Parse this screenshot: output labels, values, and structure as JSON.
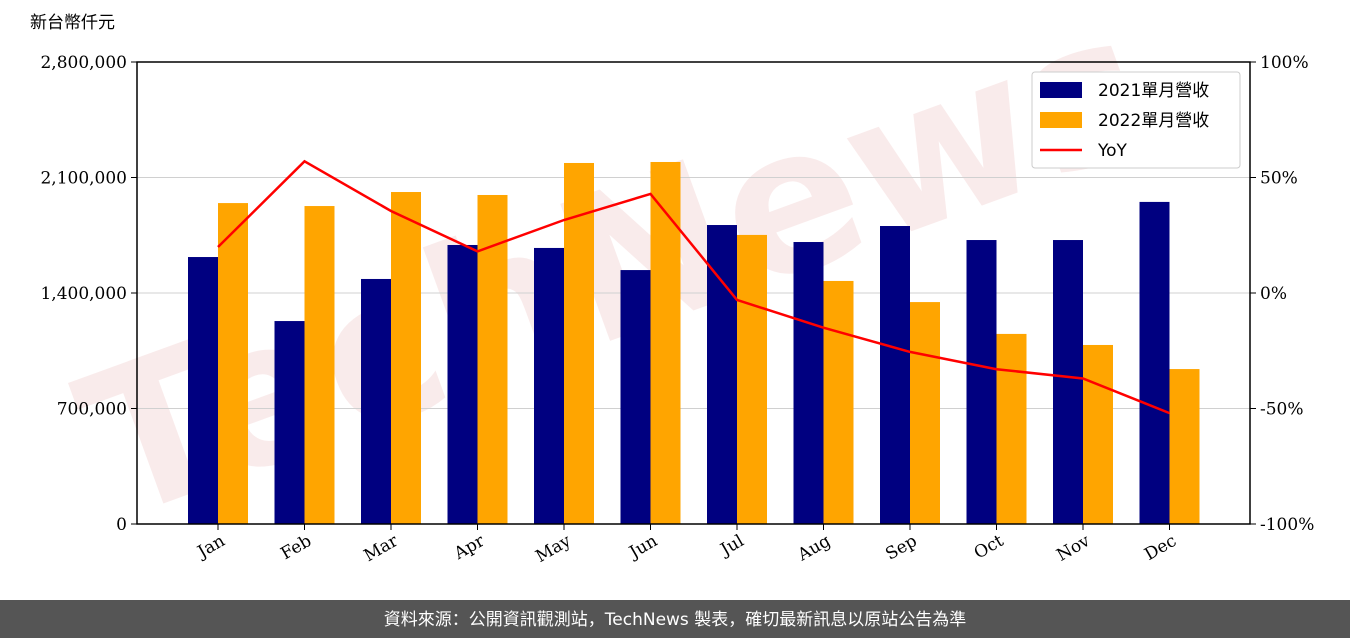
{
  "chart_data": {
    "type": "bar",
    "y_axis_label": "新台幣仟元",
    "watermark": "TechNews",
    "categories": [
      "Jan",
      "Feb",
      "Mar",
      "Apr",
      "May",
      "Jun",
      "Jul",
      "Aug",
      "Sep",
      "Oct",
      "Nov",
      "Dec"
    ],
    "series": [
      {
        "name": "2021單月營收",
        "color": "#000080",
        "values": [
          1618000,
          1230000,
          1485000,
          1691000,
          1673000,
          1539000,
          1812000,
          1709000,
          1806000,
          1721000,
          1721000,
          1952000
        ]
      },
      {
        "name": "2022單月營收",
        "color": "#ffa500",
        "values": [
          1945000,
          1927000,
          2012000,
          1994000,
          2188000,
          2194000,
          1752000,
          1473000,
          1345000,
          1152000,
          1085000,
          939000
        ]
      },
      {
        "name": "YoY",
        "color": "#ff0000",
        "type": "line",
        "axis": "y2",
        "values": [
          19.9,
          57,
          35.5,
          18,
          31.6,
          42.9,
          -3,
          -15,
          -25.5,
          -33,
          -37,
          -52
        ]
      }
    ],
    "ylim": [
      0,
      2800000
    ],
    "yticks": [
      0,
      {
        "value": 700000,
        "label": "700,000"
      },
      {
        "value": 1400000,
        "label": "1,400,000"
      },
      {
        "value": 2100000,
        "label": "2,100,000"
      },
      {
        "value": 2800000,
        "label": "2,800,000"
      }
    ],
    "y2lim": [
      -100,
      100
    ],
    "y2ticks": [
      {
        "value": -100,
        "label": "-100%"
      },
      {
        "value": -50,
        "label": "-50%"
      },
      {
        "value": 0,
        "label": "0%"
      },
      {
        "value": 50,
        "label": "50%"
      },
      {
        "value": 100,
        "label": "100%"
      }
    ],
    "grid": true,
    "legend": "upper right",
    "footer": "資料來源：公開資訊觀測站，TechNews 製表，確切最新訊息以原站公告為準"
  }
}
